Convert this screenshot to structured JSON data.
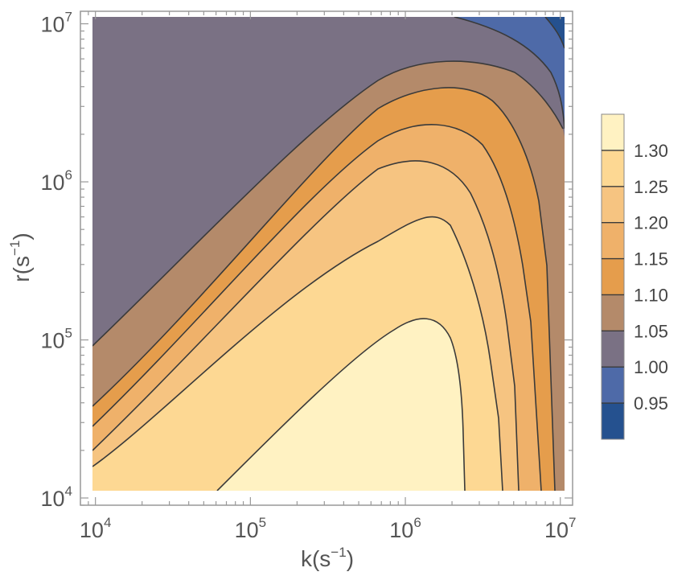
{
  "chart_data": {
    "type": "contour",
    "xlabel": {
      "base": "k(s",
      "exp": "−1",
      "close": ")"
    },
    "ylabel": {
      "base": "r(s",
      "exp": "−1",
      "close": ")"
    },
    "x_scale": "log",
    "y_scale": "log",
    "xlim": [
      8000,
      12000000
    ],
    "ylim": [
      9000,
      12000000
    ],
    "x_ticks": [
      {
        "base": "10",
        "exp": "4",
        "value": 10000
      },
      {
        "base": "10",
        "exp": "5",
        "value": 100000
      },
      {
        "base": "10",
        "exp": "6",
        "value": 1000000
      },
      {
        "base": "10",
        "exp": "7",
        "value": 10000000
      }
    ],
    "y_ticks": [
      {
        "base": "10",
        "exp": "4",
        "value": 10000
      },
      {
        "base": "10",
        "exp": "5",
        "value": 100000
      },
      {
        "base": "10",
        "exp": "6",
        "value": 1000000
      },
      {
        "base": "10",
        "exp": "7",
        "value": 10000000
      }
    ],
    "contour_levels": [
      0.95,
      1.0,
      1.05,
      1.1,
      1.15,
      1.2,
      1.25,
      1.3
    ],
    "legend": {
      "position": "right",
      "labels": [
        "1.30",
        "1.25",
        "1.20",
        "1.15",
        "1.10",
        "1.05",
        "1.00",
        "0.95"
      ],
      "bands": [
        {
          "min": 1.3,
          "max": 1.35,
          "color": "#fff2c2"
        },
        {
          "min": 1.25,
          "max": 1.3,
          "color": "#fdd893"
        },
        {
          "min": 1.2,
          "max": 1.25,
          "color": "#f6c481"
        },
        {
          "min": 1.15,
          "max": 1.2,
          "color": "#efb16a"
        },
        {
          "min": 1.1,
          "max": 1.15,
          "color": "#e59d4c"
        },
        {
          "min": 1.05,
          "max": 1.1,
          "color": "#b48a6a"
        },
        {
          "min": 1.0,
          "max": 1.05,
          "color": "#7a7184"
        },
        {
          "min": 0.95,
          "max": 1.0,
          "color": "#4e6aa8"
        },
        {
          "min": 0.9,
          "max": 0.95,
          "color": "#25518f"
        }
      ]
    },
    "grid": false
  },
  "style": {
    "frame_color": "#999999",
    "contour_line_color": "#3a3a3a"
  }
}
